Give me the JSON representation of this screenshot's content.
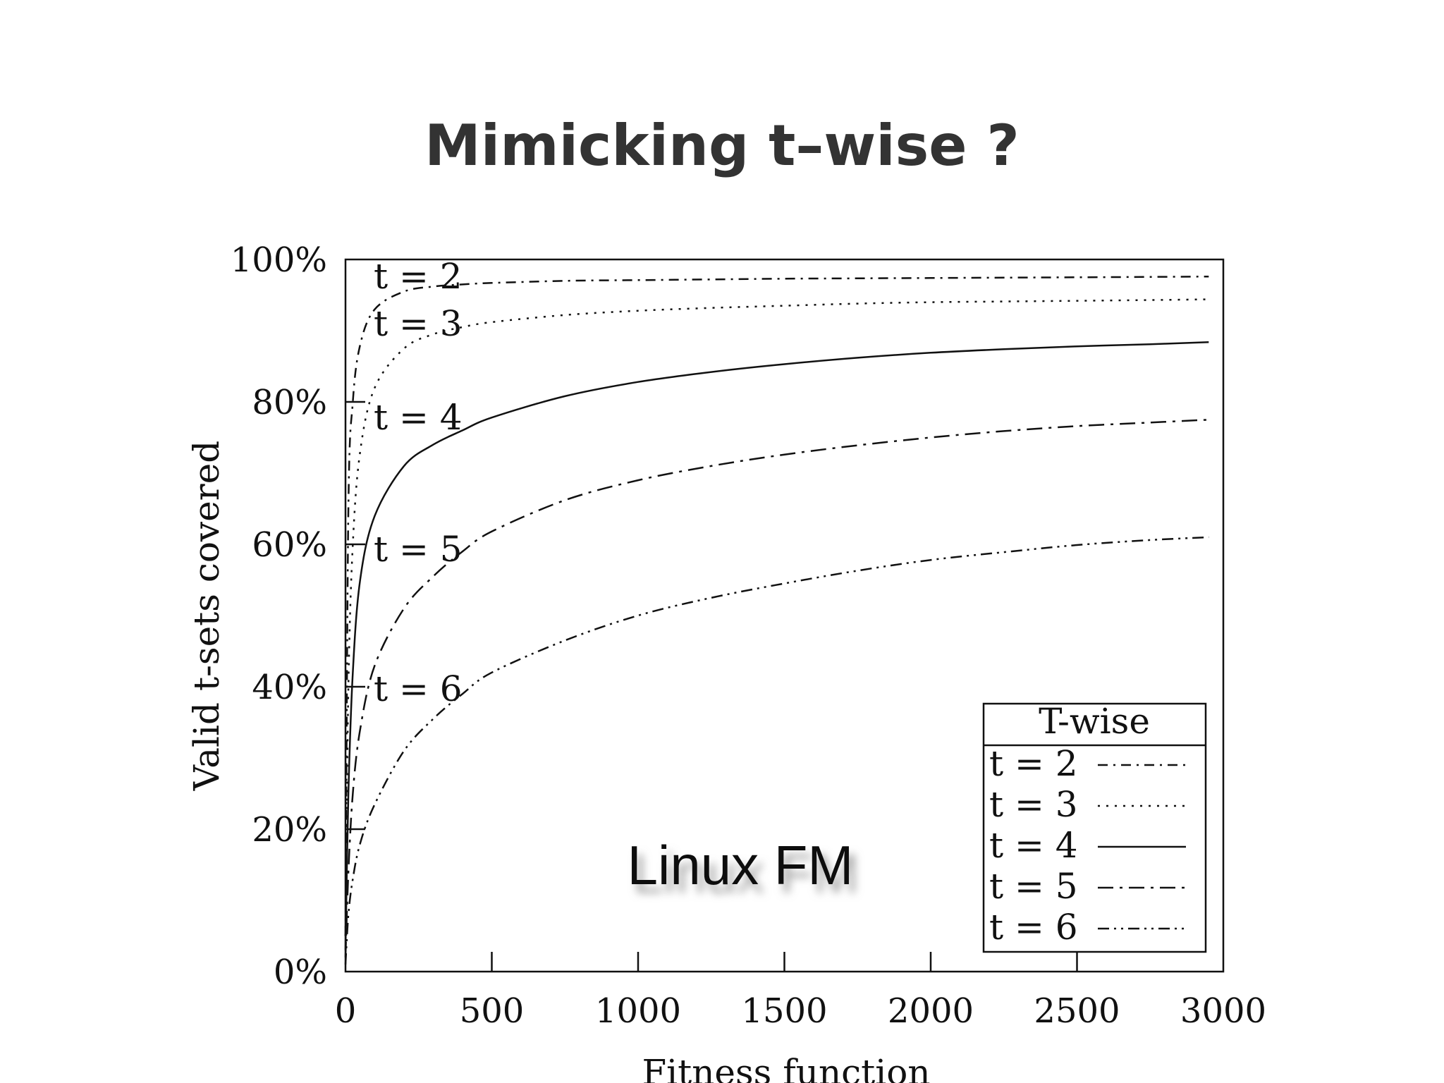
{
  "slide": {
    "title": "Mimicking t–wise ?"
  },
  "chart_data": {
    "type": "line",
    "title": "",
    "xlabel": "Fitness function",
    "ylabel": "Valid t-sets covered",
    "xlim": [
      0,
      3000
    ],
    "ylim": [
      0,
      100
    ],
    "x_ticks": [
      "0",
      "500",
      "1000",
      "1500",
      "2000",
      "2500",
      "3000"
    ],
    "y_ticks": [
      "0%",
      "20%",
      "40%",
      "60%",
      "80%",
      "100%"
    ],
    "grid": false,
    "legend": {
      "title": "T-wise",
      "position": "bottom-right"
    },
    "annotation": "Linux FM",
    "x": [
      0,
      10,
      25,
      50,
      100,
      200,
      300,
      400,
      500,
      750,
      1000,
      1250,
      1500,
      1750,
      2000,
      2250,
      2500,
      2750,
      2950
    ],
    "series": [
      {
        "name": "t = 2",
        "dash": "dash-dot",
        "label": "t = 2",
        "values": [
          5,
          65,
          80,
          88,
          93,
          95.5,
          96.2,
          96.5,
          96.7,
          97,
          97.1,
          97.2,
          97.3,
          97.35,
          97.4,
          97.45,
          97.5,
          97.55,
          97.6
        ]
      },
      {
        "name": "t = 3",
        "dash": "dotted",
        "label": "t = 3",
        "values": [
          5,
          40,
          60,
          73,
          82,
          87.5,
          89.5,
          90.5,
          91.2,
          92.2,
          92.8,
          93.2,
          93.5,
          93.8,
          94,
          94.1,
          94.2,
          94.3,
          94.4
        ]
      },
      {
        "name": "t = 4",
        "dash": "solid",
        "label": "t = 4",
        "values": [
          3,
          25,
          42,
          55,
          64,
          71,
          74,
          76,
          77.8,
          80.8,
          82.8,
          84.2,
          85.3,
          86.2,
          86.9,
          87.4,
          87.8,
          88.1,
          88.4
        ]
      },
      {
        "name": "t = 5",
        "dash": "long-dash-dot",
        "label": "t = 5",
        "values": [
          2,
          14,
          25,
          34,
          43,
          51,
          55.5,
          59,
          61.8,
          66.2,
          69,
          71,
          72.6,
          73.9,
          75,
          75.9,
          76.6,
          77.1,
          77.5
        ]
      },
      {
        "name": "t = 6",
        "dash": "dash-dot-dot",
        "label": "t = 6",
        "values": [
          1,
          8,
          13,
          18,
          23.5,
          31,
          35.5,
          39,
          42,
          46.5,
          50,
          52.5,
          54.5,
          56.3,
          57.8,
          58.9,
          59.9,
          60.6,
          61
        ]
      }
    ]
  }
}
